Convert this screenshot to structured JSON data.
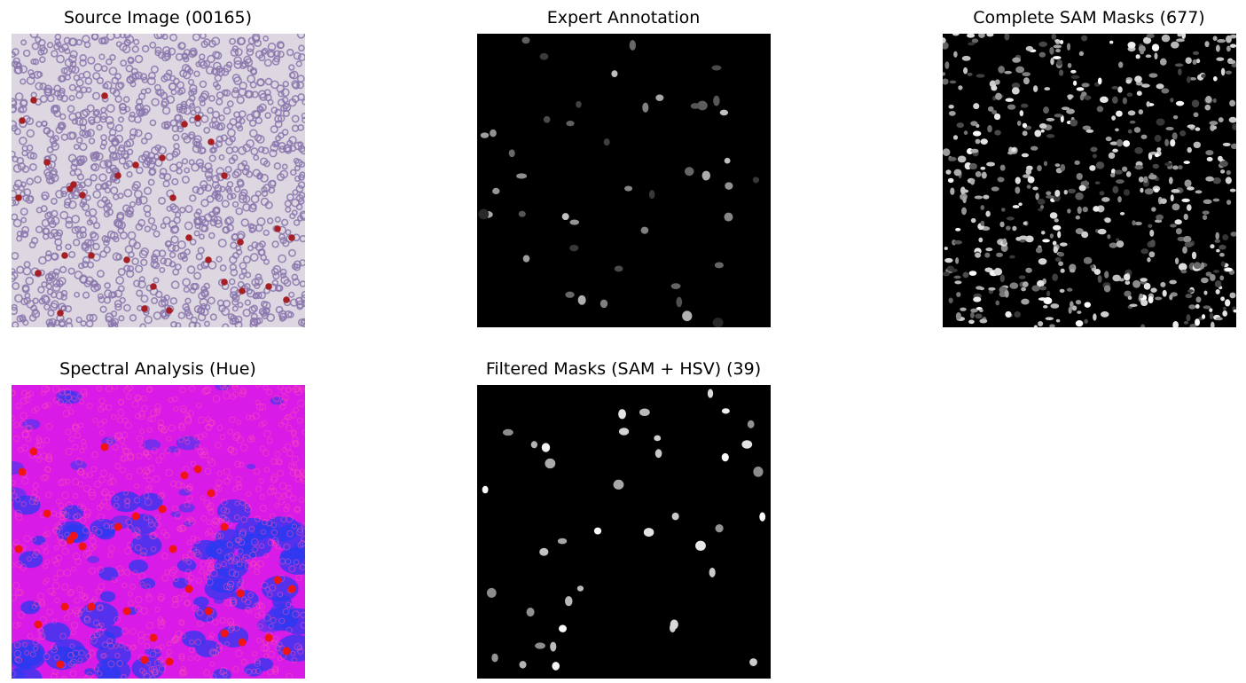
{
  "panels": [
    {
      "id": "source",
      "title": "Source Image (00165)",
      "kind": "source"
    },
    {
      "id": "expert",
      "title": "Expert Annotation",
      "kind": "sparse-mask"
    },
    {
      "id": "sam",
      "title": "Complete SAM Masks (677)",
      "kind": "dense-mask"
    },
    {
      "id": "hue",
      "title": "Spectral Analysis (Hue)",
      "kind": "hue"
    },
    {
      "id": "filtered",
      "title": "Filtered Masks (SAM + HSV) (39)",
      "kind": "sparse-mask"
    }
  ],
  "colors": {
    "source_bg": "#dcd7e0",
    "cell_purple": "#8a76ad",
    "cell_red": "#a51f24",
    "mask_bg": "#000000",
    "hue_magenta": "#d81be6",
    "hue_blue": "#2a3af0",
    "hue_red": "#f01414"
  }
}
